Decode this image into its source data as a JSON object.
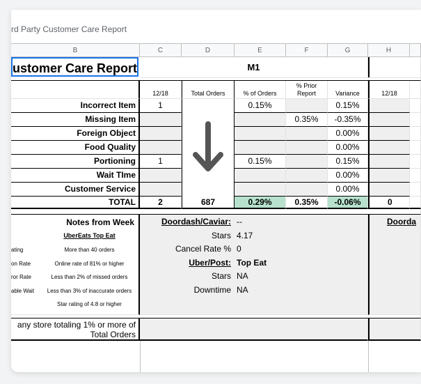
{
  "doc": {
    "name": "rd Party Customer Care Report"
  },
  "columns": [
    "B",
    "C",
    "D",
    "E",
    "F",
    "G",
    "H"
  ],
  "title": "ustomer Care Report",
  "section_header": "M1",
  "headers": {
    "date": "12/18",
    "total_orders": "Total Orders",
    "pct_orders": "% of Orders",
    "pct_prior": "% Prior Report",
    "variance": "Variance",
    "date2": "12/18"
  },
  "rows": [
    {
      "label": "Incorrect Item",
      "count": "1",
      "pct": "0.15%",
      "prior": "",
      "variance": "0.15%"
    },
    {
      "label": "Missing Item",
      "count": "",
      "pct": "",
      "prior": "0.35%",
      "variance": "-0.35%"
    },
    {
      "label": "Foreign Object",
      "count": "",
      "pct": "",
      "prior": "",
      "variance": "0.00%"
    },
    {
      "label": "Food Quality",
      "count": "",
      "pct": "",
      "prior": "",
      "variance": "0.00%"
    },
    {
      "label": "Portioning",
      "count": "1",
      "pct": "0.15%",
      "prior": "",
      "variance": "0.15%"
    },
    {
      "label": "Wait TIme",
      "count": "",
      "pct": "",
      "prior": "",
      "variance": "0.00%"
    },
    {
      "label": "Customer Service",
      "count": "",
      "pct": "",
      "prior": "",
      "variance": "0.00%"
    }
  ],
  "total": {
    "label": "TOTAL",
    "count": "2",
    "orders": "687",
    "pct": "0.29%",
    "prior": "0.35%",
    "variance": "-0.06%",
    "h": "0"
  },
  "notes": {
    "title": "Notes from Week",
    "subtitle": "UberEats Top Eat",
    "items": [
      {
        "left": "ating",
        "right": "More than 40 orders"
      },
      {
        "left": "on Rate",
        "right": "Online rate of 81% or higher"
      },
      {
        "left": "ror Rate",
        "right": "Less than 2% of missed orders"
      },
      {
        "left": "able Wait",
        "right": "Less than 3% of inaccurate orders"
      },
      {
        "left": "",
        "right": "Star rating of 4.8 or higher"
      }
    ],
    "footer_line1": "any store totaling 1% or more of",
    "footer_line2": "Total Orders"
  },
  "stats": {
    "doordash_label": "Doordash/Caviar:",
    "doordash_value": "--",
    "stars_label": "Stars",
    "stars_value": "4.17",
    "cancel_label": "Cancel Rate %",
    "cancel_value": "0",
    "uber_label": "Uber/Post:",
    "uber_value": "Top Eat",
    "uber_stars_label": "Stars",
    "uber_stars_value": "NA",
    "downtime_label": "Downtime",
    "downtime_value": "NA",
    "h_label": "Doorda"
  }
}
